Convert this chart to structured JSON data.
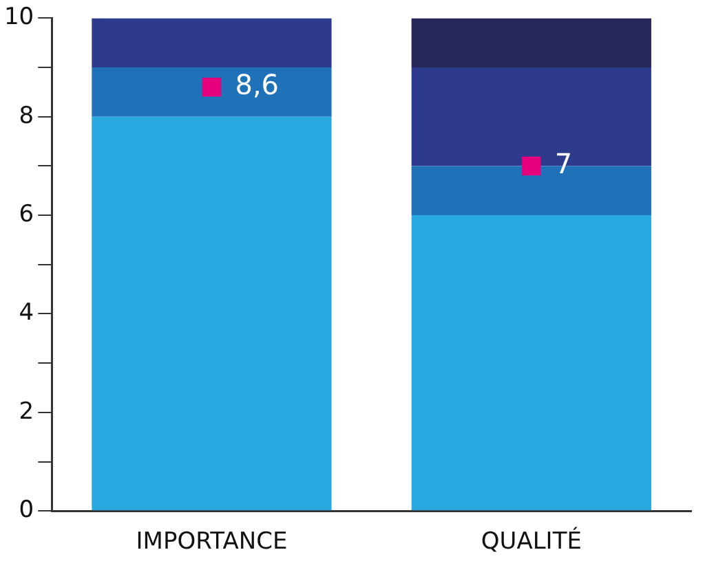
{
  "chart_data": {
    "type": "bar",
    "categories": [
      "IMPORTANCE",
      "QUALITÉ"
    ],
    "stacked": true,
    "series": [
      {
        "color": "#29a8e0",
        "values": [
          8,
          6
        ]
      },
      {
        "color": "#1f72b8",
        "values": [
          1,
          1
        ]
      },
      {
        "color": "#2e3a8c",
        "values": [
          1,
          2
        ]
      },
      {
        "color": "#262659",
        "values": [
          0,
          1
        ]
      },
      {
        "type": "scatter",
        "color": "#e6007e",
        "x": [
          "IMPORTANCE",
          "QUALITÉ"
        ],
        "values": [
          8.6,
          7
        ],
        "value_labels": [
          "8,6",
          "7"
        ],
        "marker": "square"
      }
    ],
    "ylim": [
      0,
      10
    ],
    "yticks": [
      0,
      {
        "value": 1,
        "label": null
      },
      2,
      {
        "value": 3,
        "label": null
      },
      4,
      {
        "value": 5,
        "label": null
      },
      6,
      {
        "value": 7,
        "label": null
      },
      8,
      {
        "value": 9,
        "label": null
      },
      10
    ],
    "grid": false,
    "legend": false
  }
}
